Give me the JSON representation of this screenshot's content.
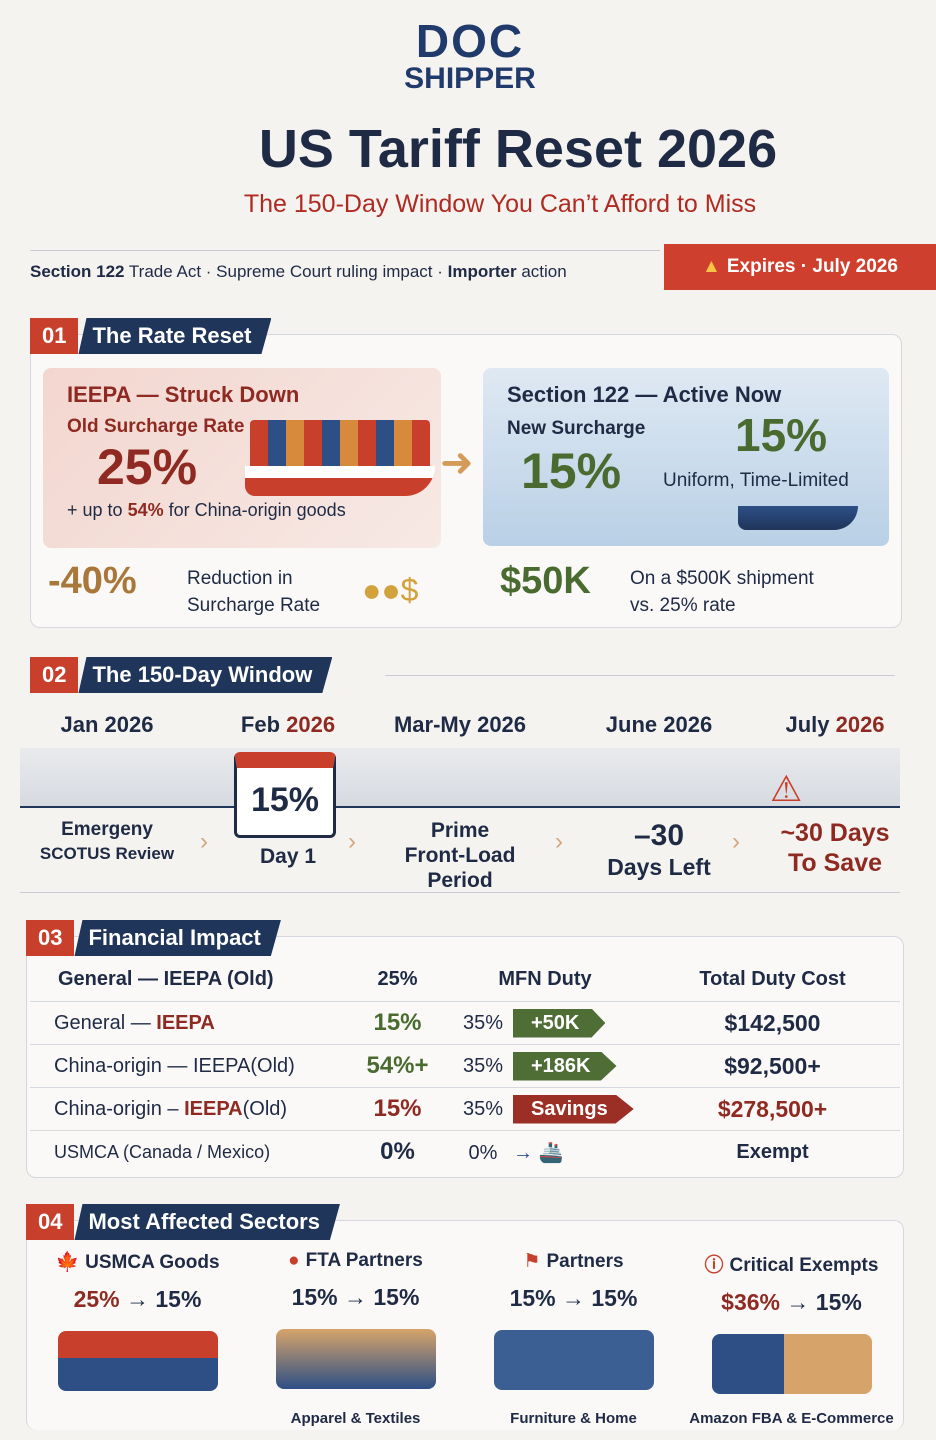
{
  "logo": {
    "line1": "DOC",
    "line2": "SHIPPER"
  },
  "header": {
    "title": "US Tariff Reset 2026",
    "subtitle": "The 150-Day Window You Can’t Afford to Miss",
    "tag_1": "Section 122",
    "tag_2": " Trade Act · Supreme Court ruling impact · ",
    "tag_3": "Importer",
    "tag_4": " action",
    "expires": "Expires · July 2026"
  },
  "s1": {
    "num": "01",
    "title": "The Rate Reset",
    "left": {
      "heading": "IEEPA — Struck Down",
      "label": "Old Surcharge Rate",
      "rate": "25%",
      "note_pre": "+ up to ",
      "note_val": "54%",
      "note_post": " for China-origin goods"
    },
    "right": {
      "heading": "Section 122 — Active Now",
      "label": "New Surcharge",
      "rate": "15%",
      "rate_big": "15%",
      "note": "Uniform, Time-Limited"
    },
    "stat1": {
      "value": "-40%",
      "text1": "Reduction in",
      "text2": "Surcharge Rate"
    },
    "stat2": {
      "value": "$50K",
      "text1": "On a $500K shipment",
      "text2": "vs. 25% rate"
    }
  },
  "s2": {
    "num": "02",
    "title": "The 150-Day Window",
    "items": [
      {
        "m": "Jan ",
        "y": "2026",
        "l1": "Emergeny",
        "l2": "SCOTUS Review"
      },
      {
        "m": "Feb ",
        "y": "2026",
        "cal": "15%",
        "l1": "Day 1",
        "l2": ""
      },
      {
        "m": "Mar-My ",
        "y": "2026",
        "l1": "Prime",
        "l2": "Front-Load",
        "l3": "Period"
      },
      {
        "m": "June ",
        "y": "2026",
        "l1": "–30",
        "l2": "Days Left"
      },
      {
        "m": "July ",
        "y": "2026",
        "l1": "~30 Days",
        "l2": "To Save"
      }
    ]
  },
  "s3": {
    "num": "03",
    "title": "Financial Impact",
    "header": [
      "General — IEEPA (Old)",
      "25%",
      "MFN Duty",
      "Total Duty Cost"
    ],
    "rows": [
      {
        "a": "General — ",
        "b": "IEEPA",
        "c": "",
        "rate": "15%",
        "mfn": "35%",
        "pill": "+50K",
        "total": "$142,500"
      },
      {
        "a": "China-origin — IEEPA",
        "b": "",
        "c": "(Old)",
        "rate": "54%+",
        "mfn": "35%",
        "pill": "+186K",
        "total": "$92,500+"
      },
      {
        "a": "China-origin – ",
        "b": "IEEPA",
        "c": "(Old)",
        "rate": "15%",
        "mfn": "35%",
        "pill": "Savings",
        "total": "$278,500+"
      },
      {
        "a": "USMCA (Canada / Mexico)",
        "b": "",
        "c": "",
        "rate": "0%",
        "mfn": "0%",
        "pill": "",
        "total": "Exempt"
      }
    ]
  },
  "s4": {
    "num": "04",
    "title": "Most Affected Sectors",
    "items": [
      {
        "name": "USMCA Goods",
        "from": "25%",
        "to": "15%",
        "foot": ""
      },
      {
        "name": "FTA Partners",
        "from": "15%",
        "to": "15%",
        "foot": "Apparel & Textiles"
      },
      {
        "name": "Partners",
        "from": "15%",
        "to": "15%",
        "foot": "Furniture & Home"
      },
      {
        "name": "Critical Exempts",
        "from": "$36%",
        "to": "15%",
        "foot": "Amazon FBA & E-Commerce"
      }
    ]
  },
  "colors": {
    "red": "#c8402c",
    "navy": "#1f3559",
    "green": "#4a6b2f",
    "maroon": "#8e2a22"
  }
}
